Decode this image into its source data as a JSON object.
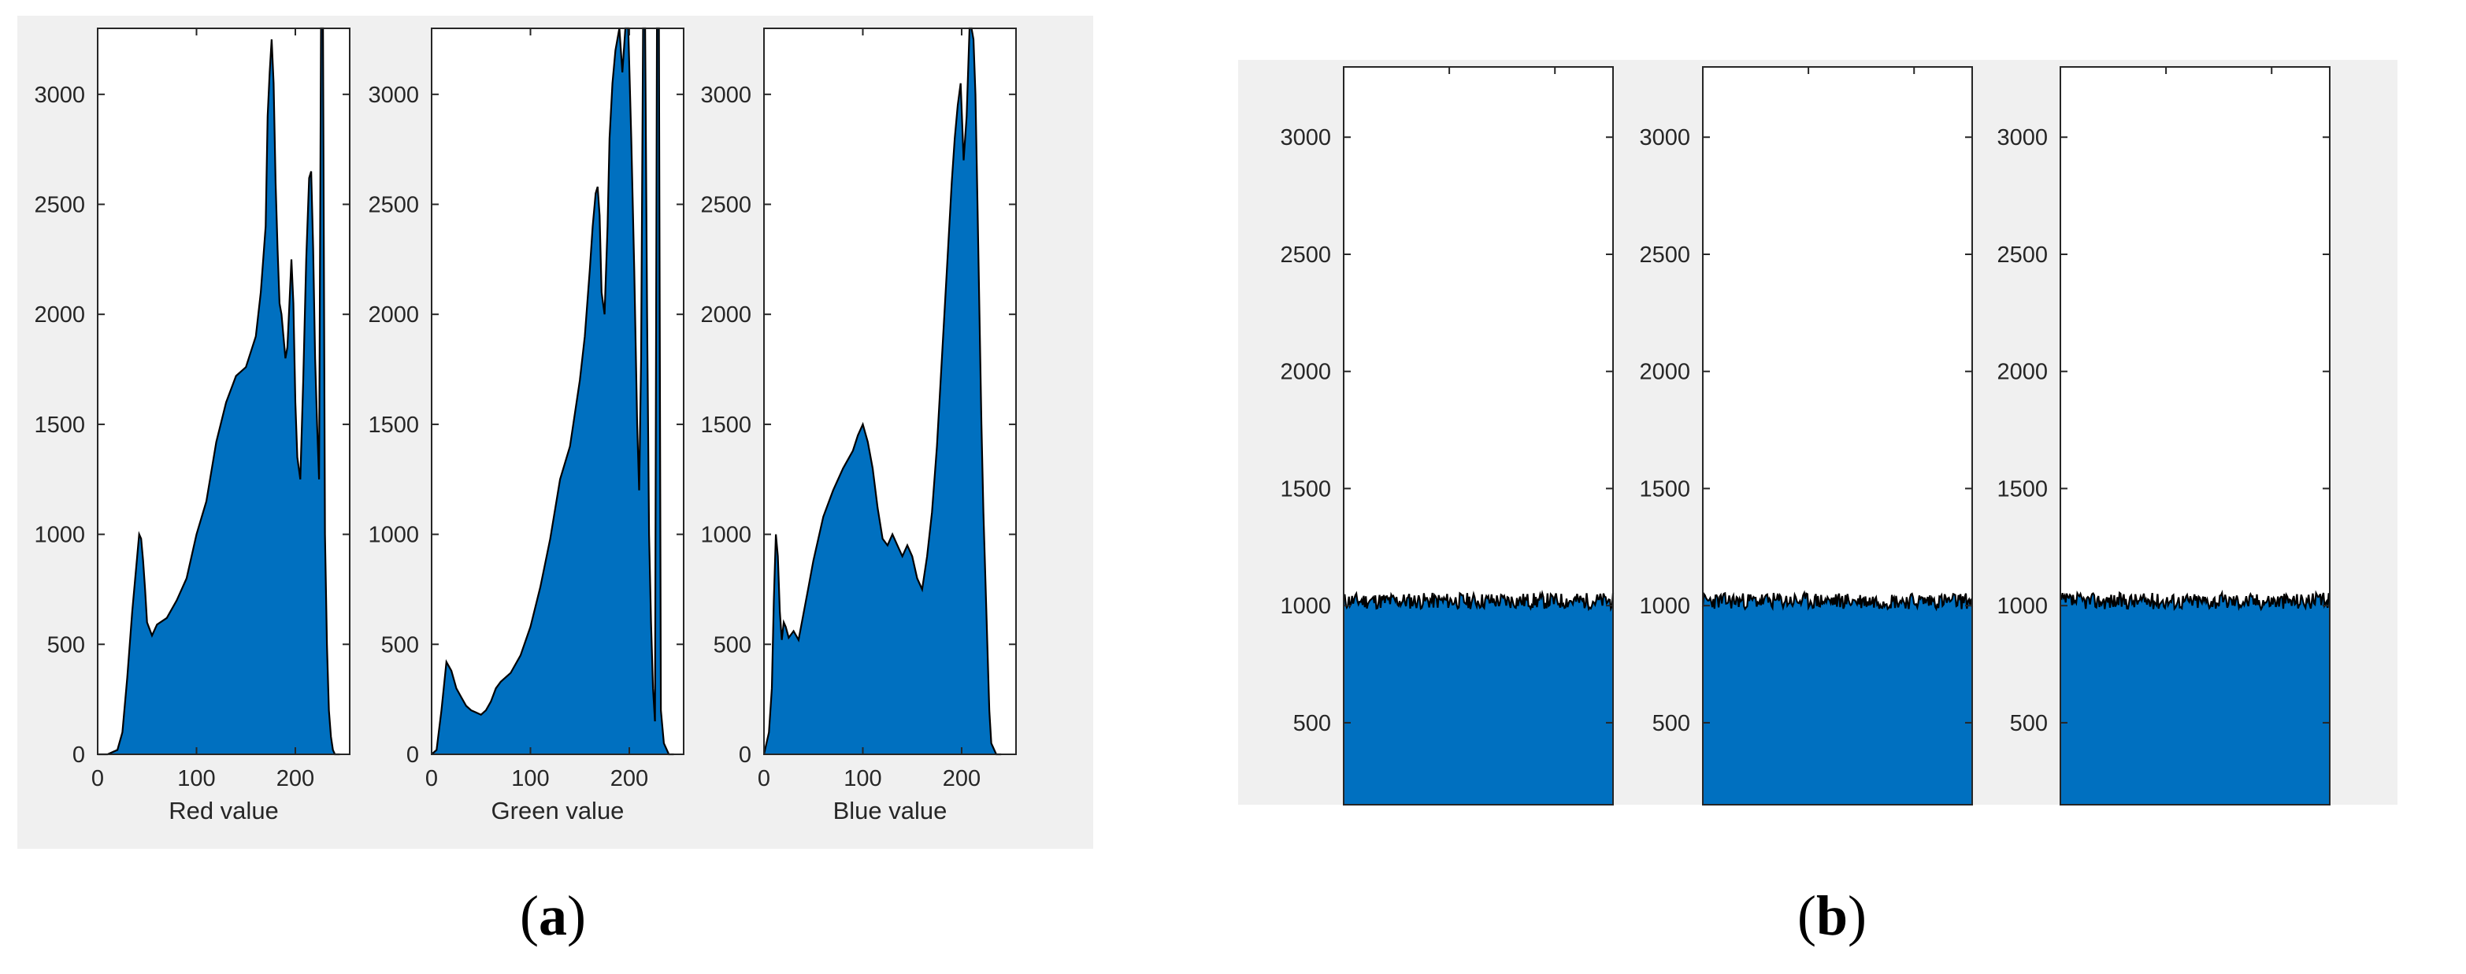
{
  "figure": {
    "colors": {
      "fill": "#0070C0",
      "edge": "#000000",
      "background": "#F0F0F0",
      "axes": "#FFFFFF"
    },
    "panel_labels": [
      {
        "open": "(",
        "letter": "a",
        "close": ")"
      },
      {
        "open": "(",
        "letter": "b",
        "close": ")"
      }
    ]
  },
  "chart_data": [
    {
      "type": "area",
      "panel": "a",
      "ylim": [
        0,
        3300
      ],
      "xlim": [
        0,
        255
      ],
      "xticks": [
        "0",
        "100",
        "200"
      ],
      "yticks": [
        "0",
        "500",
        "1000",
        "1500",
        "2000",
        "2500",
        "3000"
      ],
      "xlabel": "Red value",
      "series": [
        {
          "x": [
            0,
            10,
            20,
            25,
            30,
            35,
            40,
            42,
            44,
            46,
            48,
            50,
            55,
            60,
            70,
            80,
            90,
            100,
            110,
            120,
            130,
            140,
            150,
            160,
            165,
            170,
            172,
            174,
            176,
            178,
            180,
            182,
            184,
            186,
            188,
            190,
            192,
            194,
            196,
            198,
            200,
            202,
            205,
            208,
            211,
            214,
            216,
            218,
            220,
            222,
            224,
            226,
            228,
            230,
            232,
            234,
            236,
            238,
            240,
            245
          ],
          "y": [
            0,
            0,
            20,
            100,
            350,
            650,
            900,
            1000,
            980,
            880,
            750,
            600,
            540,
            590,
            620,
            700,
            800,
            1000,
            1150,
            1420,
            1600,
            1720,
            1760,
            1900,
            2100,
            2400,
            2900,
            3100,
            3250,
            3050,
            2600,
            2300,
            2050,
            2000,
            1900,
            1800,
            1850,
            2050,
            2250,
            2050,
            1600,
            1350,
            1250,
            1700,
            2250,
            2620,
            2650,
            2300,
            1800,
            1500,
            1250,
            3300,
            3300,
            1000,
            500,
            200,
            80,
            20,
            0,
            0
          ]
        }
      ]
    },
    {
      "type": "area",
      "panel": "a",
      "ylim": [
        0,
        3300
      ],
      "xlim": [
        0,
        255
      ],
      "xticks": [
        "0",
        "100",
        "200"
      ],
      "yticks": [
        "0",
        "500",
        "1000",
        "1500",
        "2000",
        "2500",
        "3000"
      ],
      "xlabel": "Green value",
      "series": [
        {
          "x": [
            0,
            5,
            10,
            15,
            20,
            25,
            30,
            35,
            40,
            45,
            50,
            55,
            60,
            65,
            70,
            80,
            90,
            100,
            110,
            120,
            130,
            140,
            150,
            155,
            160,
            163,
            166,
            168,
            170,
            172,
            175,
            178,
            180,
            183,
            186,
            190,
            193,
            196,
            199,
            202,
            205,
            208,
            210,
            212,
            214,
            216,
            218,
            220,
            222,
            224,
            226,
            228,
            230,
            232,
            235,
            240,
            245
          ],
          "y": [
            0,
            20,
            200,
            420,
            380,
            300,
            260,
            220,
            200,
            190,
            180,
            200,
            240,
            300,
            330,
            370,
            450,
            580,
            760,
            980,
            1250,
            1400,
            1700,
            1900,
            2200,
            2400,
            2550,
            2580,
            2450,
            2100,
            2000,
            2400,
            2800,
            3050,
            3200,
            3300,
            3100,
            3300,
            3300,
            2800,
            2200,
            1500,
            1200,
            1800,
            3300,
            3300,
            2000,
            1000,
            600,
            300,
            150,
            3300,
            3300,
            200,
            50,
            0,
            0
          ]
        }
      ]
    },
    {
      "type": "area",
      "panel": "a",
      "ylim": [
        0,
        3300
      ],
      "xlim": [
        0,
        255
      ],
      "xticks": [
        "0",
        "100",
        "200"
      ],
      "yticks": [
        "0",
        "500",
        "1000",
        "1500",
        "2000",
        "2500",
        "3000"
      ],
      "xlabel": "Blue value",
      "series": [
        {
          "x": [
            0,
            5,
            8,
            10,
            12,
            14,
            16,
            18,
            20,
            22,
            25,
            30,
            35,
            40,
            45,
            50,
            55,
            60,
            70,
            80,
            90,
            95,
            100,
            105,
            110,
            115,
            120,
            125,
            130,
            135,
            140,
            145,
            150,
            155,
            160,
            165,
            170,
            175,
            180,
            185,
            190,
            193,
            196,
            199,
            202,
            205,
            208,
            210,
            212,
            214,
            216,
            218,
            220,
            222,
            224,
            226,
            228,
            230,
            235,
            240
          ],
          "y": [
            0,
            100,
            300,
            700,
            1000,
            900,
            650,
            520,
            600,
            580,
            530,
            560,
            520,
            640,
            760,
            880,
            980,
            1080,
            1200,
            1300,
            1380,
            1450,
            1500,
            1420,
            1300,
            1120,
            980,
            950,
            1000,
            950,
            900,
            950,
            900,
            800,
            750,
            900,
            1100,
            1400,
            1800,
            2200,
            2600,
            2800,
            2950,
            3050,
            2700,
            2900,
            3300,
            3300,
            3250,
            3000,
            2500,
            2000,
            1500,
            1100,
            800,
            500,
            200,
            50,
            0,
            0
          ]
        }
      ]
    },
    {
      "type": "area",
      "panel": "b",
      "ylim": [
        150,
        3300
      ],
      "xlim": [
        0,
        255
      ],
      "yticks": [
        "500",
        "1000",
        "1500",
        "2000",
        "2500",
        "3000"
      ],
      "xlabel": "",
      "series": [
        {
          "x": [
            0,
            255
          ],
          "y": [
            1020,
            1020
          ],
          "noise": 35,
          "seed": 11
        }
      ]
    },
    {
      "type": "area",
      "panel": "b",
      "ylim": [
        150,
        3300
      ],
      "xlim": [
        0,
        255
      ],
      "yticks": [
        "500",
        "1000",
        "1500",
        "2000",
        "2500",
        "3000"
      ],
      "xlabel": "",
      "series": [
        {
          "x": [
            0,
            255
          ],
          "y": [
            1020,
            1020
          ],
          "noise": 35,
          "seed": 23
        }
      ]
    },
    {
      "type": "area",
      "panel": "b",
      "ylim": [
        150,
        3300
      ],
      "xlim": [
        0,
        255
      ],
      "yticks": [
        "500",
        "1000",
        "1500",
        "2000",
        "2500",
        "3000"
      ],
      "xlabel": "",
      "series": [
        {
          "x": [
            0,
            255
          ],
          "y": [
            1020,
            1020
          ],
          "noise": 35,
          "seed": 37
        }
      ]
    }
  ]
}
